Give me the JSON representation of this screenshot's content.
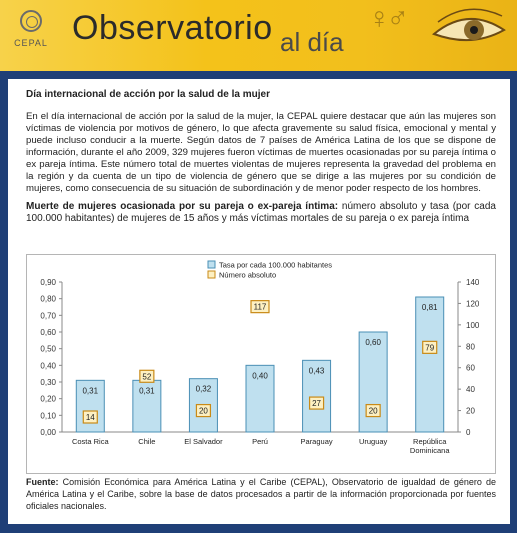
{
  "header": {
    "logo_text": "CEPAL",
    "title_main": "Observatorio",
    "title_sub": "al día",
    "symbols": "♀♂"
  },
  "article": {
    "heading": "Día internacional de acción por la salud de la mujer",
    "paragraph": "En el día internacional de acción por la salud de la mujer, la CEPAL quiere destacar que aún las mujeres son víctimas de violencia por motivos de género, lo que afecta gravemente su salud física, emocional y mental y puede incluso conducir a la muerte. Según datos de 7 países de América Latina de los que se dispone de información, durante el año 2009, 329 mujeres fueron víctimas de muertes ocasionadas por su pareja íntima o ex pareja íntima. Este número total de muertes violentas de mujeres representa la gravedad del problema en la región y da cuenta de un tipo de violencia de género que se dirige a las mujeres por su condición de mujeres, como consecuencia de su situación de subordinación y de menor poder respecto de los hombres.",
    "chart_heading_bold": "Muerte de mujeres ocasionada por su pareja o ex-pareja íntima:",
    "chart_heading_rest": " número absoluto y tasa (por cada 100.000 habitantes) de mujeres de 15 años y más víctimas mortales de su pareja o ex pareja íntima"
  },
  "source": {
    "label": "Fuente:",
    "text": " Comisión Económica para América Latina y el Caribe (CEPAL), Observatorio de igualdad de género de América Latina y el Caribe, sobre la base de datos procesados a partir de la información proporcionada por fuentes oficiales nacionales."
  },
  "colors": {
    "frame": "#1f3f77",
    "header": "#f3c21a",
    "bar_fill": "#bfe0ef",
    "bar_stroke": "#4a8fb5",
    "marker_fill": "#fdf0c2",
    "marker_stroke": "#c98a17"
  },
  "chart_data": {
    "type": "bar",
    "categories": [
      "Costa Rica",
      "Chile",
      "El Salvador",
      "Perú",
      "Paraguay",
      "Uruguay",
      "República Dominicana"
    ],
    "series": [
      {
        "name": "Tasa por cada 100.000 habitantes",
        "values": [
          0.31,
          0.31,
          0.32,
          0.4,
          0.43,
          0.6,
          0.81
        ],
        "labels": [
          "0,31",
          "0,31",
          "0,32",
          "0,40",
          "0,43",
          "0,60",
          "0,81"
        ]
      },
      {
        "name": "Número absoluto",
        "values": [
          14,
          52,
          20,
          117,
          27,
          20,
          79
        ],
        "labels": [
          "14",
          "52",
          "20",
          "117",
          "27",
          "20",
          "79"
        ]
      }
    ],
    "y_left": {
      "ticks": [
        "0,00",
        "0,10",
        "0,20",
        "0,30",
        "0,40",
        "0,50",
        "0,60",
        "0,70",
        "0,80",
        "0,90"
      ],
      "range": [
        0,
        0.9
      ]
    },
    "y_right": {
      "ticks": [
        "0",
        "20",
        "40",
        "60",
        "80",
        "100",
        "120",
        "140"
      ],
      "range": [
        0,
        140
      ]
    },
    "legend_position": "top-center",
    "grid": false
  }
}
